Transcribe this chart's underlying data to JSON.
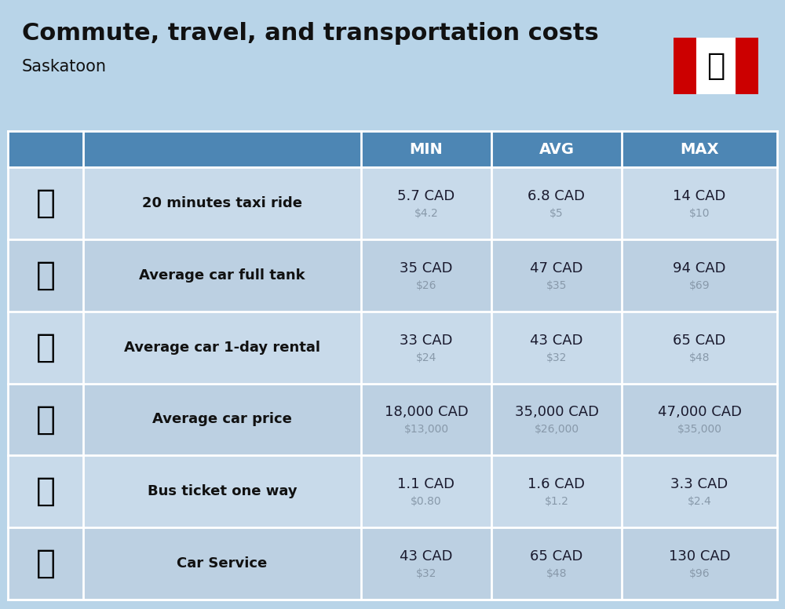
{
  "title": "Commute, travel, and transportation costs",
  "subtitle": "Saskatoon",
  "bg_color": "#b8d4e8",
  "header_bg": "#4d86b4",
  "header_text_color": "#ffffff",
  "row_bg": "#c8daea",
  "row_bg_alt": "#bcd0e2",
  "label_color": "#111111",
  "value_color": "#1a1a2e",
  "subvalue_color": "#8899aa",
  "col_headers": [
    "MIN",
    "AVG",
    "MAX"
  ],
  "rows": [
    {
      "label": "20 minutes taxi ride",
      "min_cad": "5.7 CAD",
      "min_usd": "$4.2",
      "avg_cad": "6.8 CAD",
      "avg_usd": "$5",
      "max_cad": "14 CAD",
      "max_usd": "$10"
    },
    {
      "label": "Average car full tank",
      "min_cad": "35 CAD",
      "min_usd": "$26",
      "avg_cad": "47 CAD",
      "avg_usd": "$35",
      "max_cad": "94 CAD",
      "max_usd": "$69"
    },
    {
      "label": "Average car 1-day rental",
      "min_cad": "33 CAD",
      "min_usd": "$24",
      "avg_cad": "43 CAD",
      "avg_usd": "$32",
      "max_cad": "65 CAD",
      "max_usd": "$48"
    },
    {
      "label": "Average car price",
      "min_cad": "18,000 CAD",
      "min_usd": "$13,000",
      "avg_cad": "35,000 CAD",
      "avg_usd": "$26,000",
      "max_cad": "47,000 CAD",
      "max_usd": "$35,000"
    },
    {
      "label": "Bus ticket one way",
      "min_cad": "1.1 CAD",
      "min_usd": "$0.80",
      "avg_cad": "1.6 CAD",
      "avg_usd": "$1.2",
      "max_cad": "3.3 CAD",
      "max_usd": "$2.4"
    },
    {
      "label": "Car Service",
      "min_cad": "43 CAD",
      "min_usd": "$32",
      "avg_cad": "65 CAD",
      "avg_usd": "$48",
      "max_cad": "130 CAD",
      "max_usd": "$96"
    }
  ],
  "figsize": [
    10.0,
    7.76
  ],
  "dpi": 100,
  "title_fontsize": 22,
  "subtitle_fontsize": 15,
  "header_fontsize": 14,
  "label_fontsize": 13,
  "value_fontsize": 13,
  "subvalue_fontsize": 10
}
